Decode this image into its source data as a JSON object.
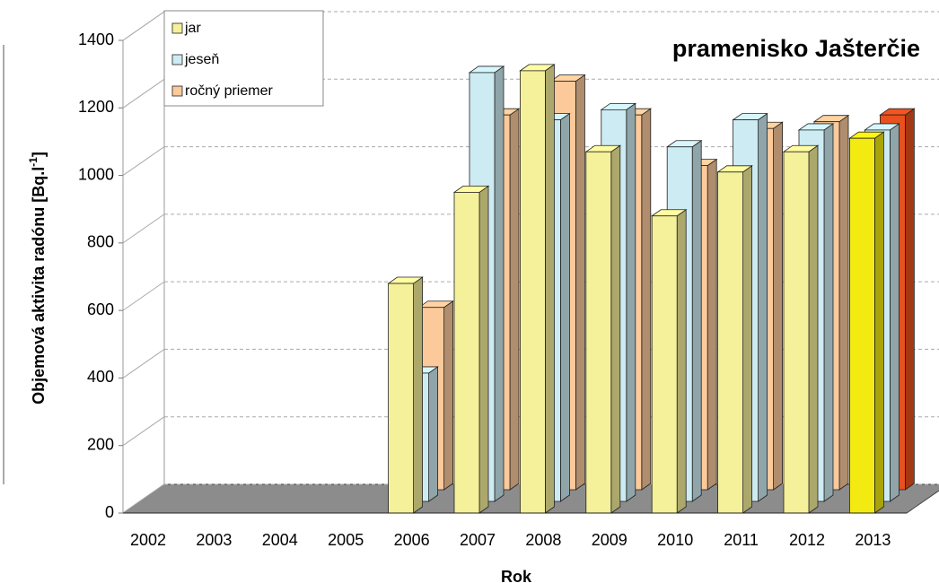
{
  "chart_data": {
    "type": "bar3d",
    "title": "pramenisko Jašterčie",
    "x_label": "Rok",
    "y_label": {
      "text": "Objemová aktivita radónu [Bq.l",
      "sup": "-1",
      "end": "]"
    },
    "categories": [
      "2002",
      "2003",
      "2004",
      "2005",
      "2006",
      "2007",
      "2008",
      "2009",
      "2010",
      "2011",
      "2012",
      "2013"
    ],
    "series": [
      {
        "name": "jar",
        "color": "#f5f09a",
        "colors": [
          "#f5f09a",
          "#f5f09a",
          "#f5f09a",
          "#f5f09a",
          "#f5f09a",
          "#f5f09a",
          "#f5f09a",
          "#f5f09a",
          "#f5f09a",
          "#f5f09a",
          "#f5f09a",
          "#f2ea10"
        ],
        "values": [
          null,
          null,
          null,
          null,
          680,
          950,
          1310,
          1070,
          880,
          1010,
          1070,
          1110
        ]
      },
      {
        "name": "jeseň",
        "color": "#cdebf2",
        "colors": [
          "#cdebf2",
          "#cdebf2",
          "#cdebf2",
          "#cdebf2",
          "#cdebf2",
          "#cdebf2",
          "#cdebf2",
          "#cdebf2",
          "#cdebf2",
          "#cdebf2",
          "#cdebf2",
          "#cdebf2"
        ],
        "values": [
          null,
          null,
          null,
          null,
          380,
          1270,
          1130,
          1160,
          1050,
          1130,
          1100,
          1100
        ]
      },
      {
        "name": "ročný priemer",
        "color": "#fbc99a",
        "colors": [
          "#fbc99a",
          "#fbc99a",
          "#fbc99a",
          "#fbc99a",
          "#fbc99a",
          "#fbc99a",
          "#fbc99a",
          "#fbc99a",
          "#fbc99a",
          "#fbc99a",
          "#fbc99a",
          "#e8501e"
        ],
        "values": [
          null,
          null,
          null,
          null,
          540,
          1110,
          1210,
          1110,
          960,
          1070,
          1090,
          1110
        ]
      }
    ],
    "ylim": [
      0,
      1400
    ],
    "yticks": [
      0,
      200,
      400,
      600,
      800,
      1000,
      1200,
      1400
    ],
    "grid": true
  }
}
